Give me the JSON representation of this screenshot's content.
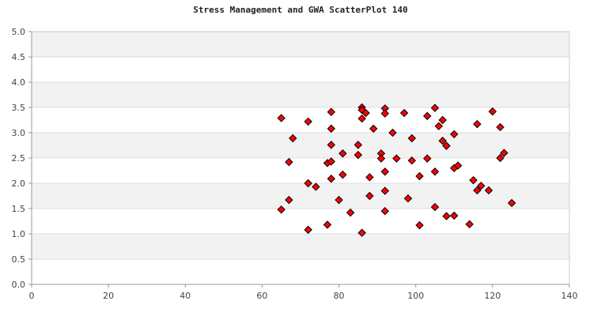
{
  "chart_data": {
    "type": "scatter",
    "title": "Stress Management and GWA ScatterPlot 140",
    "xlabel": "",
    "ylabel": "",
    "xlim": [
      0,
      140
    ],
    "ylim": [
      0,
      5
    ],
    "x_ticks": [
      "0",
      "20",
      "40",
      "60",
      "80",
      "100",
      "120",
      "140"
    ],
    "y_ticks": [
      "0.0",
      "0.5",
      "1.0",
      "1.5",
      "2.0",
      "2.5",
      "3.0",
      "3.5",
      "4.0",
      "4.5",
      "5.0"
    ],
    "grid": true,
    "band_color": "#f2f2f2",
    "marker_color": "#ff0000",
    "marker_edge_color": "#000000",
    "points": [
      [
        65,
        3.29
      ],
      [
        65,
        1.48
      ],
      [
        67,
        2.42
      ],
      [
        67,
        1.67
      ],
      [
        68,
        2.89
      ],
      [
        72,
        3.22
      ],
      [
        72,
        2.0
      ],
      [
        72,
        1.08
      ],
      [
        74,
        1.93
      ],
      [
        77,
        2.4
      ],
      [
        77,
        1.18
      ],
      [
        78,
        3.41
      ],
      [
        78,
        3.08
      ],
      [
        78,
        2.76
      ],
      [
        78,
        2.43
      ],
      [
        78,
        2.09
      ],
      [
        80,
        1.67
      ],
      [
        81,
        2.59
      ],
      [
        81,
        2.17
      ],
      [
        83,
        1.42
      ],
      [
        85,
        2.76
      ],
      [
        85,
        2.56
      ],
      [
        86,
        3.5
      ],
      [
        86,
        3.45
      ],
      [
        86,
        3.28
      ],
      [
        86,
        1.02
      ],
      [
        87,
        3.39
      ],
      [
        88,
        2.12
      ],
      [
        88,
        1.75
      ],
      [
        89,
        3.08
      ],
      [
        91,
        2.59
      ],
      [
        91,
        2.49
      ],
      [
        92,
        3.48
      ],
      [
        92,
        3.38
      ],
      [
        92,
        2.23
      ],
      [
        92,
        1.85
      ],
      [
        92,
        1.45
      ],
      [
        94,
        3.0
      ],
      [
        95,
        2.49
      ],
      [
        97,
        3.39
      ],
      [
        98,
        1.7
      ],
      [
        99,
        2.89
      ],
      [
        99,
        2.45
      ],
      [
        101,
        2.14
      ],
      [
        101,
        1.17
      ],
      [
        103,
        3.33
      ],
      [
        103,
        2.49
      ],
      [
        105,
        3.49
      ],
      [
        105,
        2.23
      ],
      [
        105,
        1.53
      ],
      [
        106,
        3.13
      ],
      [
        107,
        3.25
      ],
      [
        107,
        2.84
      ],
      [
        108,
        2.74
      ],
      [
        108,
        1.35
      ],
      [
        110,
        2.97
      ],
      [
        110,
        2.3
      ],
      [
        110,
        1.36
      ],
      [
        111,
        2.35
      ],
      [
        114,
        1.19
      ],
      [
        115,
        2.06
      ],
      [
        116,
        3.17
      ],
      [
        116,
        1.86
      ],
      [
        117,
        1.95
      ],
      [
        119,
        1.86
      ],
      [
        120,
        3.42
      ],
      [
        122,
        3.11
      ],
      [
        122,
        2.5
      ],
      [
        123,
        2.6
      ],
      [
        125,
        1.61
      ]
    ]
  }
}
